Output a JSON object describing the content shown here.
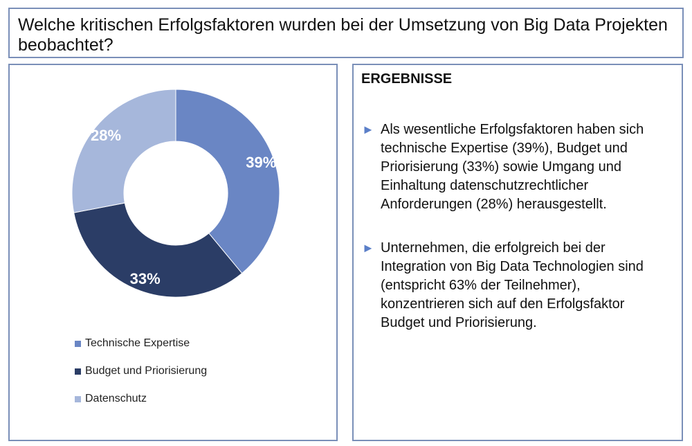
{
  "question": "Welche kritischen Erfolgsfaktoren wurden bei der Umsetzung von Big Data Projekten beobachtet?",
  "chart_data": {
    "type": "pie",
    "variant": "donut",
    "categories": [
      "Technische Expertise",
      "Budget und Priorisierung",
      "Datenschutz"
    ],
    "values": [
      39,
      33,
      28
    ],
    "data_labels": [
      "39%",
      "33%",
      "28%"
    ],
    "colors": [
      "#6a86c4",
      "#2b3d66",
      "#a6b7db"
    ],
    "legend_position": "bottom"
  },
  "results": {
    "heading": "ERGEBNISSE",
    "bullet_icon": "triangle-right-icon",
    "bullet_glyph": "►",
    "items": [
      "Als wesentliche Erfolgsfaktoren haben sich technische Expertise (39%), Budget und Priorisierung (33%) sowie Umgang und Einhaltung datenschutzrechtlicher Anforderungen (28%) herausgestellt.",
      "Unternehmen, die erfolgreich bei der Integration von Big Data Technologien sind (entspricht 63% der Teilnehmer), konzentrieren sich auf den Erfolgsfaktor Budget und Priorisierung."
    ]
  }
}
